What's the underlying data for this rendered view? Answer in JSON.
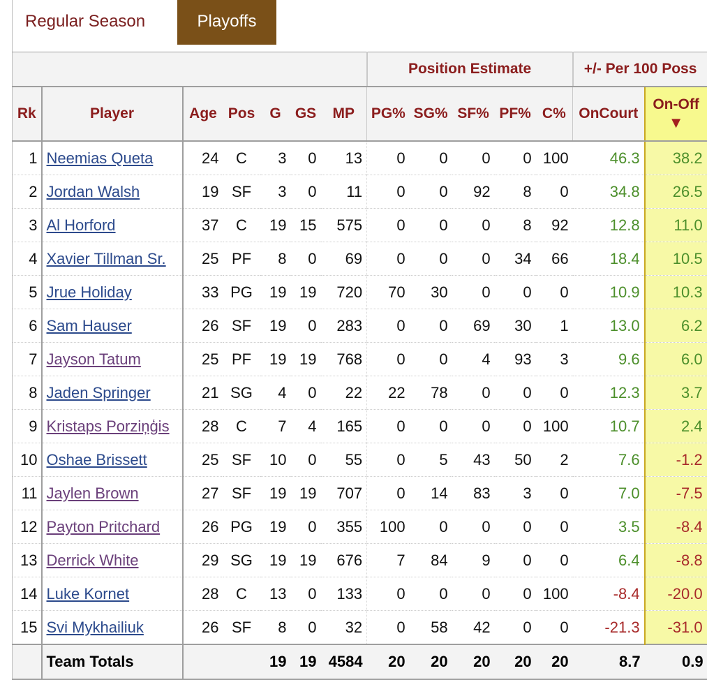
{
  "tabs": {
    "regular": "Regular Season",
    "playoffs": "Playoffs"
  },
  "overheader": {
    "position_estimate": "Position Estimate",
    "plus_minus": "+/- Per 100 Poss"
  },
  "columns": [
    "Rk",
    "Player",
    "Age",
    "Pos",
    "G",
    "GS",
    "MP",
    "PG%",
    "SG%",
    "SF%",
    "PF%",
    "C%",
    "OnCourt",
    "On-Off"
  ],
  "sort_indicator": "▼",
  "rows": [
    {
      "rk": "1",
      "player": "Neemias Queta",
      "link": "unvisited",
      "age": "24",
      "pos": "C",
      "g": "3",
      "gs": "0",
      "mp": "13",
      "pg": "0",
      "sg": "0",
      "sf": "0",
      "pf": "0",
      "c": "100",
      "oncourt": "46.3",
      "onoff": "38.2",
      "oc_color": "green",
      "oo_color": "green"
    },
    {
      "rk": "2",
      "player": "Jordan Walsh",
      "link": "unvisited",
      "age": "19",
      "pos": "SF",
      "g": "3",
      "gs": "0",
      "mp": "11",
      "pg": "0",
      "sg": "0",
      "sf": "92",
      "pf": "8",
      "c": "0",
      "oncourt": "34.8",
      "onoff": "26.5",
      "oc_color": "green",
      "oo_color": "green"
    },
    {
      "rk": "3",
      "player": "Al Horford",
      "link": "unvisited",
      "age": "37",
      "pos": "C",
      "g": "19",
      "gs": "15",
      "mp": "575",
      "pg": "0",
      "sg": "0",
      "sf": "0",
      "pf": "8",
      "c": "92",
      "oncourt": "12.8",
      "onoff": "11.0",
      "oc_color": "green",
      "oo_color": "green"
    },
    {
      "rk": "4",
      "player": "Xavier Tillman Sr.",
      "link": "unvisited",
      "age": "25",
      "pos": "PF",
      "g": "8",
      "gs": "0",
      "mp": "69",
      "pg": "0",
      "sg": "0",
      "sf": "0",
      "pf": "34",
      "c": "66",
      "oncourt": "18.4",
      "onoff": "10.5",
      "oc_color": "green",
      "oo_color": "green"
    },
    {
      "rk": "5",
      "player": "Jrue Holiday",
      "link": "unvisited",
      "age": "33",
      "pos": "PG",
      "g": "19",
      "gs": "19",
      "mp": "720",
      "pg": "70",
      "sg": "30",
      "sf": "0",
      "pf": "0",
      "c": "0",
      "oncourt": "10.9",
      "onoff": "10.3",
      "oc_color": "green",
      "oo_color": "green"
    },
    {
      "rk": "6",
      "player": "Sam Hauser",
      "link": "unvisited",
      "age": "26",
      "pos": "SF",
      "g": "19",
      "gs": "0",
      "mp": "283",
      "pg": "0",
      "sg": "0",
      "sf": "69",
      "pf": "30",
      "c": "1",
      "oncourt": "13.0",
      "onoff": "6.2",
      "oc_color": "green",
      "oo_color": "green"
    },
    {
      "rk": "7",
      "player": "Jayson Tatum",
      "link": "visited",
      "age": "25",
      "pos": "PF",
      "g": "19",
      "gs": "19",
      "mp": "768",
      "pg": "0",
      "sg": "0",
      "sf": "4",
      "pf": "93",
      "c": "3",
      "oncourt": "9.6",
      "onoff": "6.0",
      "oc_color": "green",
      "oo_color": "green"
    },
    {
      "rk": "8",
      "player": "Jaden Springer",
      "link": "unvisited",
      "age": "21",
      "pos": "SG",
      "g": "4",
      "gs": "0",
      "mp": "22",
      "pg": "22",
      "sg": "78",
      "sf": "0",
      "pf": "0",
      "c": "0",
      "oncourt": "12.3",
      "onoff": "3.7",
      "oc_color": "green",
      "oo_color": "green"
    },
    {
      "rk": "9",
      "player": "Kristaps Porziņģis",
      "link": "visited",
      "age": "28",
      "pos": "C",
      "g": "7",
      "gs": "4",
      "mp": "165",
      "pg": "0",
      "sg": "0",
      "sf": "0",
      "pf": "0",
      "c": "100",
      "oncourt": "10.7",
      "onoff": "2.4",
      "oc_color": "green",
      "oo_color": "green"
    },
    {
      "rk": "10",
      "player": "Oshae Brissett",
      "link": "unvisited",
      "age": "25",
      "pos": "SF",
      "g": "10",
      "gs": "0",
      "mp": "55",
      "pg": "0",
      "sg": "5",
      "sf": "43",
      "pf": "50",
      "c": "2",
      "oncourt": "7.6",
      "onoff": "-1.2",
      "oc_color": "green",
      "oo_color": "red"
    },
    {
      "rk": "11",
      "player": "Jaylen Brown",
      "link": "visited",
      "age": "27",
      "pos": "SF",
      "g": "19",
      "gs": "19",
      "mp": "707",
      "pg": "0",
      "sg": "14",
      "sf": "83",
      "pf": "3",
      "c": "0",
      "oncourt": "7.0",
      "onoff": "-7.5",
      "oc_color": "green",
      "oo_color": "red"
    },
    {
      "rk": "12",
      "player": "Payton Pritchard",
      "link": "visited",
      "age": "26",
      "pos": "PG",
      "g": "19",
      "gs": "0",
      "mp": "355",
      "pg": "100",
      "sg": "0",
      "sf": "0",
      "pf": "0",
      "c": "0",
      "oncourt": "3.5",
      "onoff": "-8.4",
      "oc_color": "green",
      "oo_color": "red"
    },
    {
      "rk": "13",
      "player": "Derrick White",
      "link": "visited",
      "age": "29",
      "pos": "SG",
      "g": "19",
      "gs": "19",
      "mp": "676",
      "pg": "7",
      "sg": "84",
      "sf": "9",
      "pf": "0",
      "c": "0",
      "oncourt": "6.4",
      "onoff": "-8.8",
      "oc_color": "green",
      "oo_color": "red"
    },
    {
      "rk": "14",
      "player": "Luke Kornet",
      "link": "unvisited",
      "age": "28",
      "pos": "C",
      "g": "13",
      "gs": "0",
      "mp": "133",
      "pg": "0",
      "sg": "0",
      "sf": "0",
      "pf": "0",
      "c": "100",
      "oncourt": "-8.4",
      "onoff": "-20.0",
      "oc_color": "red",
      "oo_color": "red"
    },
    {
      "rk": "15",
      "player": "Svi Mykhailiuk",
      "link": "unvisited",
      "age": "26",
      "pos": "SF",
      "g": "8",
      "gs": "0",
      "mp": "32",
      "pg": "0",
      "sg": "58",
      "sf": "42",
      "pf": "0",
      "c": "0",
      "oncourt": "-21.3",
      "onoff": "-31.0",
      "oc_color": "red",
      "oo_color": "red"
    }
  ],
  "totals": {
    "label": "Team Totals",
    "g": "19",
    "gs": "19",
    "mp": "4584",
    "pg": "20",
    "sg": "20",
    "sf": "20",
    "pf": "20",
    "c": "20",
    "oncourt": "8.7",
    "onoff": "0.9"
  }
}
